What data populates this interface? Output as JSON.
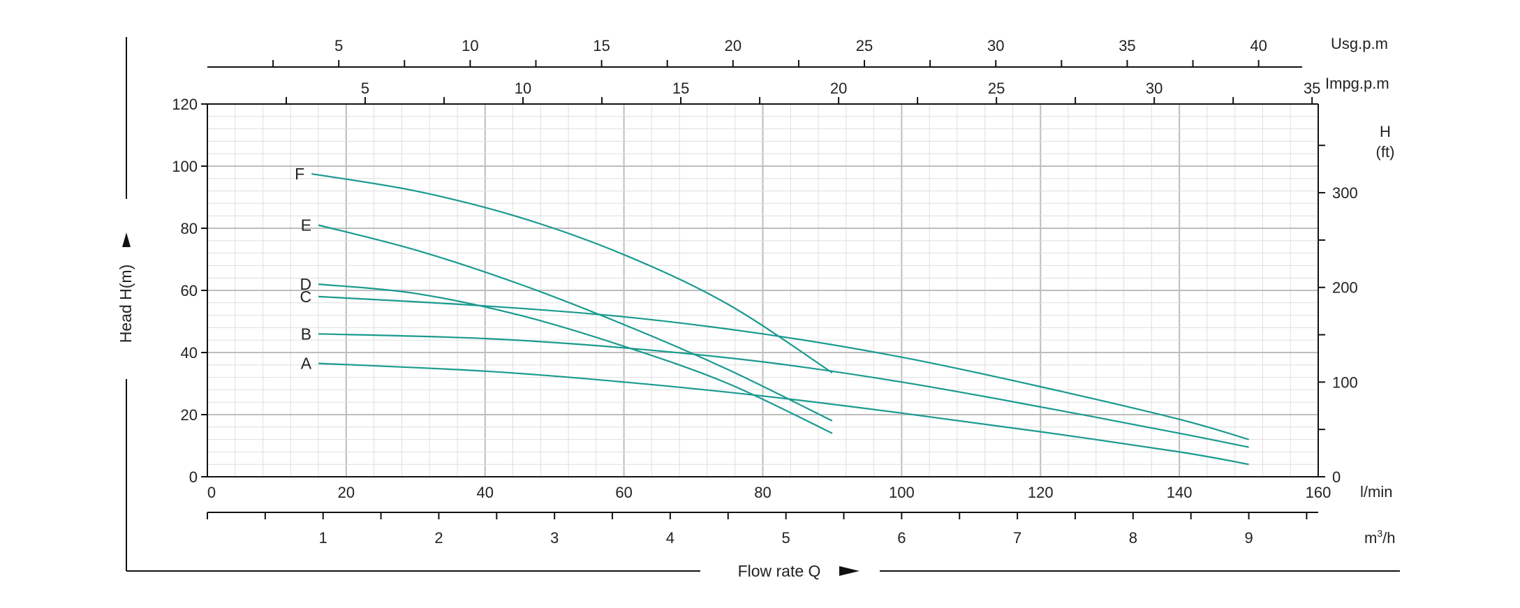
{
  "chart_data": {
    "type": "line",
    "title": "",
    "xlabel": "Flow rate Q",
    "ylabel": "Head H(m)",
    "x_unit": "l/min",
    "y_unit": "",
    "xlim": [
      0,
      160
    ],
    "ylim": [
      0,
      120
    ],
    "x_ticks": [
      "0",
      "20",
      "40",
      "60",
      "80",
      "100",
      "120",
      "140",
      "160"
    ],
    "y_ticks": [
      "0",
      "20",
      "40",
      "60",
      "80",
      "100",
      "120"
    ],
    "grid": true,
    "secondary_axes": {
      "usgpm": {
        "unit": "Usg.p.m",
        "factor": 0.264172,
        "labels": [
          "5",
          "10",
          "15",
          "20",
          "25",
          "30",
          "35",
          "40"
        ],
        "values": [
          5,
          10,
          15,
          20,
          25,
          30,
          35,
          40
        ]
      },
      "impgpm": {
        "unit": "Impg.p.m",
        "factor": 0.219969,
        "labels": [
          "5",
          "10",
          "15",
          "20",
          "25",
          "30",
          "35"
        ],
        "values": [
          5,
          10,
          15,
          20,
          25,
          30,
          35
        ]
      },
      "m3h": {
        "unit_base": "m",
        "unit_sup": "3",
        "unit_tail": "/h",
        "factor": 0.06,
        "labels": [
          "1",
          "2",
          "3",
          "4",
          "5",
          "6",
          "7",
          "8",
          "9"
        ],
        "values": [
          1,
          2,
          3,
          4,
          5,
          6,
          7,
          8,
          9
        ]
      },
      "feet": {
        "unit_line1": "H",
        "unit_line2": "(ft)",
        "factor": 3.28084,
        "labels": [
          "0",
          "100",
          "200",
          "300"
        ],
        "values": [
          0,
          100,
          200,
          300
        ]
      }
    },
    "series": [
      {
        "name": "A",
        "color": "#1a9a8f",
        "x": [
          16,
          40,
          60,
          80,
          100,
          120,
          140,
          150
        ],
        "y": [
          36.5,
          34,
          30.5,
          26,
          20.5,
          14.5,
          8,
          4
        ]
      },
      {
        "name": "B",
        "color": "#1a9a8f",
        "x": [
          16,
          40,
          60,
          80,
          100,
          120,
          140,
          150
        ],
        "y": [
          46,
          44.5,
          41.5,
          37,
          30.5,
          22.5,
          14,
          9.5
        ]
      },
      {
        "name": "C",
        "color": "#1a9a8f",
        "x": [
          16,
          40,
          60,
          80,
          100,
          120,
          140,
          150
        ],
        "y": [
          58,
          55,
          51.5,
          46,
          38.5,
          29,
          18.5,
          12
        ]
      },
      {
        "name": "D",
        "color": "#1a9a8f",
        "x": [
          16,
          30,
          45,
          60,
          75,
          90
        ],
        "y": [
          62,
          59,
          52,
          42,
          30,
          14
        ]
      },
      {
        "name": "E",
        "color": "#1a9a8f",
        "x": [
          16,
          30,
          45,
          60,
          75,
          90
        ],
        "y": [
          81,
          73,
          62,
          49,
          34.5,
          18
        ]
      },
      {
        "name": "F",
        "color": "#1a9a8f",
        "x": [
          15,
          30,
          45,
          60,
          75,
          90
        ],
        "y": [
          97.5,
          92,
          83.5,
          71.5,
          55.5,
          33.5
        ]
      }
    ]
  }
}
